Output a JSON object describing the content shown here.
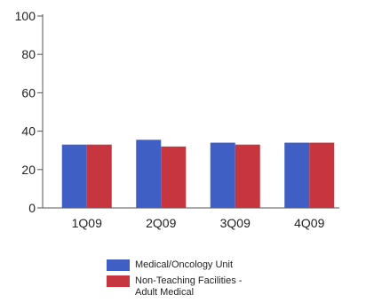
{
  "chart_data": {
    "type": "bar",
    "categories": [
      "1Q09",
      "2Q09",
      "3Q09",
      "4Q09"
    ],
    "ylim": [
      0,
      100
    ],
    "yticks": [
      0,
      20,
      40,
      60,
      80,
      100
    ],
    "grid": false,
    "legend_position": "bottom",
    "series": [
      {
        "name": "Medical/Oncology Unit",
        "color": "#3f5fc4",
        "values": [
          33,
          35.5,
          34,
          34
        ]
      },
      {
        "name": "Non-Teaching Facilities -\nAdult Medical",
        "color": "#c7353f",
        "values": [
          33,
          32,
          33,
          34
        ]
      }
    ]
  }
}
